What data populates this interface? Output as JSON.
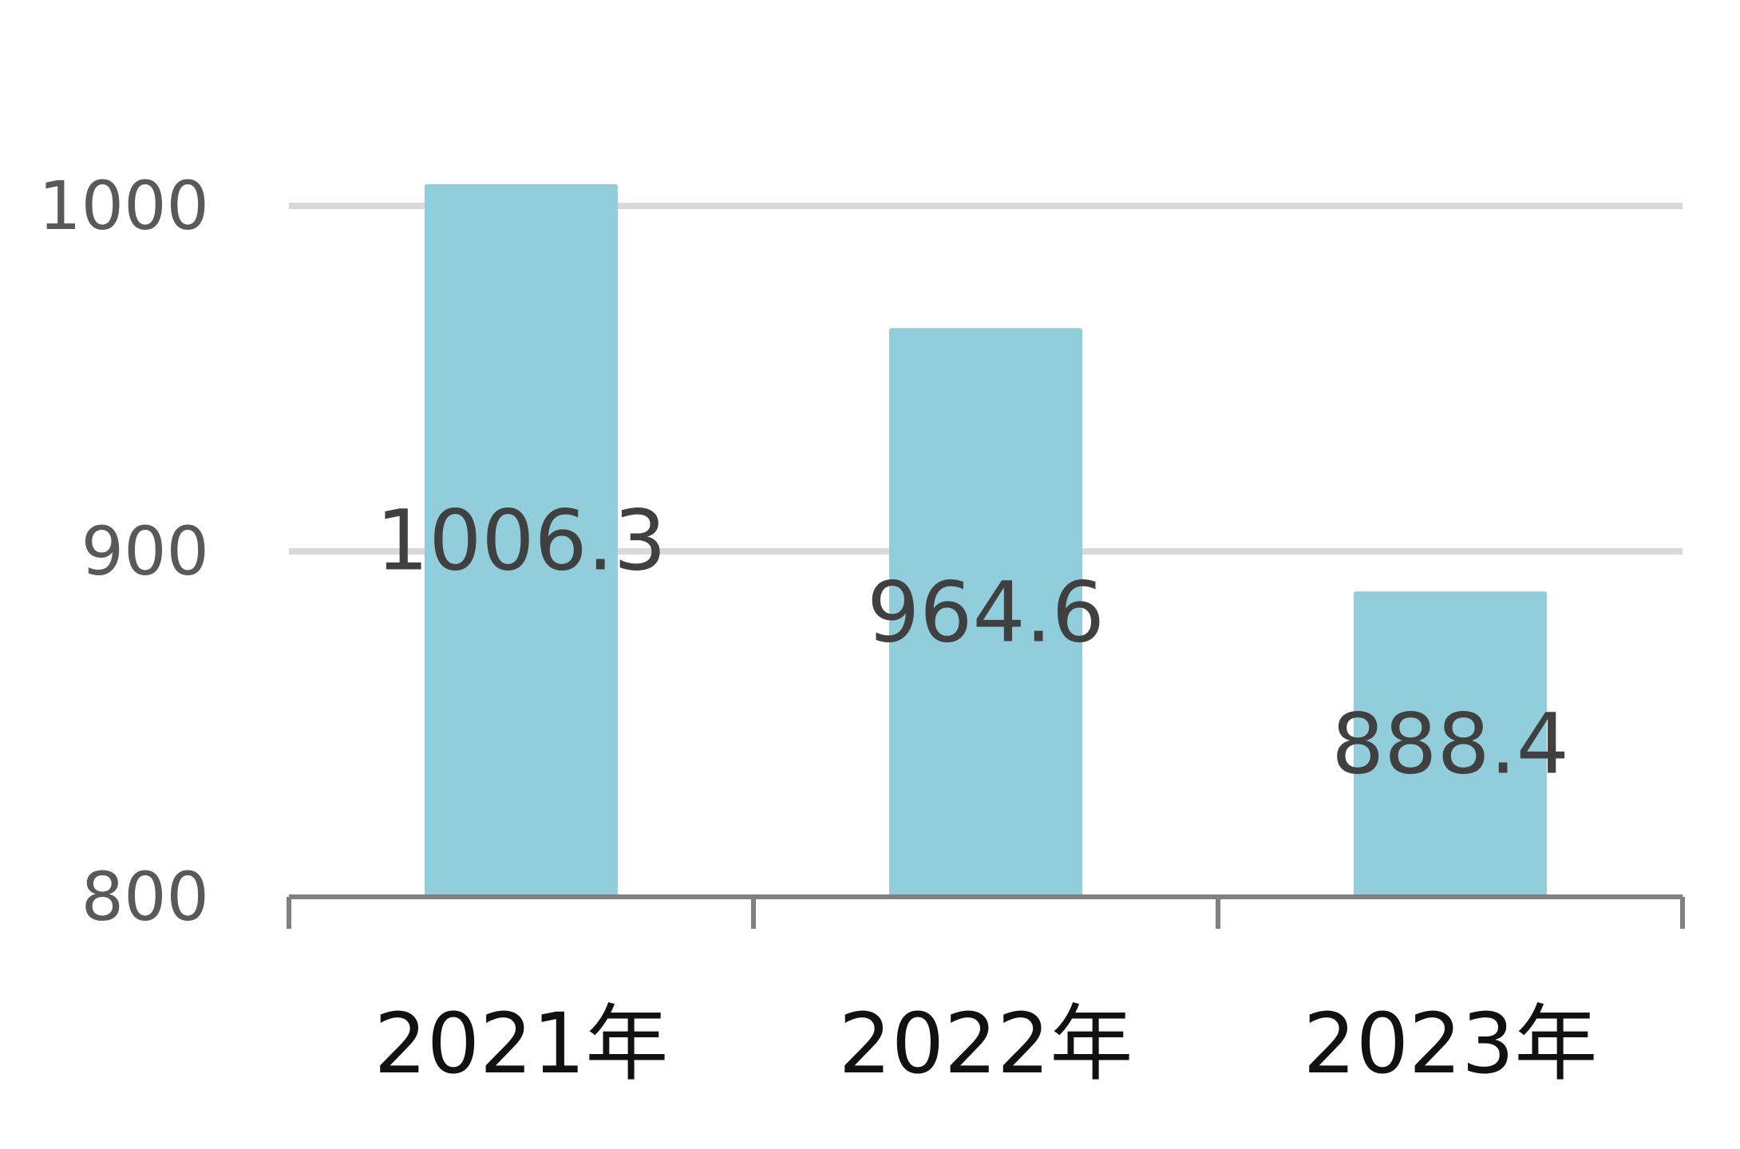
{
  "chart_data": {
    "type": "bar",
    "title": "",
    "xlabel": "",
    "ylabel": "",
    "categories": [
      "2021年",
      "2022年",
      "2023年"
    ],
    "values": [
      1006.3,
      964.6,
      888.4
    ],
    "data_labels": [
      "1006.3",
      "964.6",
      "888.4"
    ],
    "ylim": [
      800,
      1000
    ],
    "yticks": [
      800,
      900,
      1000
    ],
    "ytick_labels": [
      "800",
      "900",
      "1000"
    ],
    "grid": true,
    "legend": "none",
    "bar_color": "#92CDDC",
    "grid_color": "#D9D9D9",
    "axis_color": "#808080"
  }
}
